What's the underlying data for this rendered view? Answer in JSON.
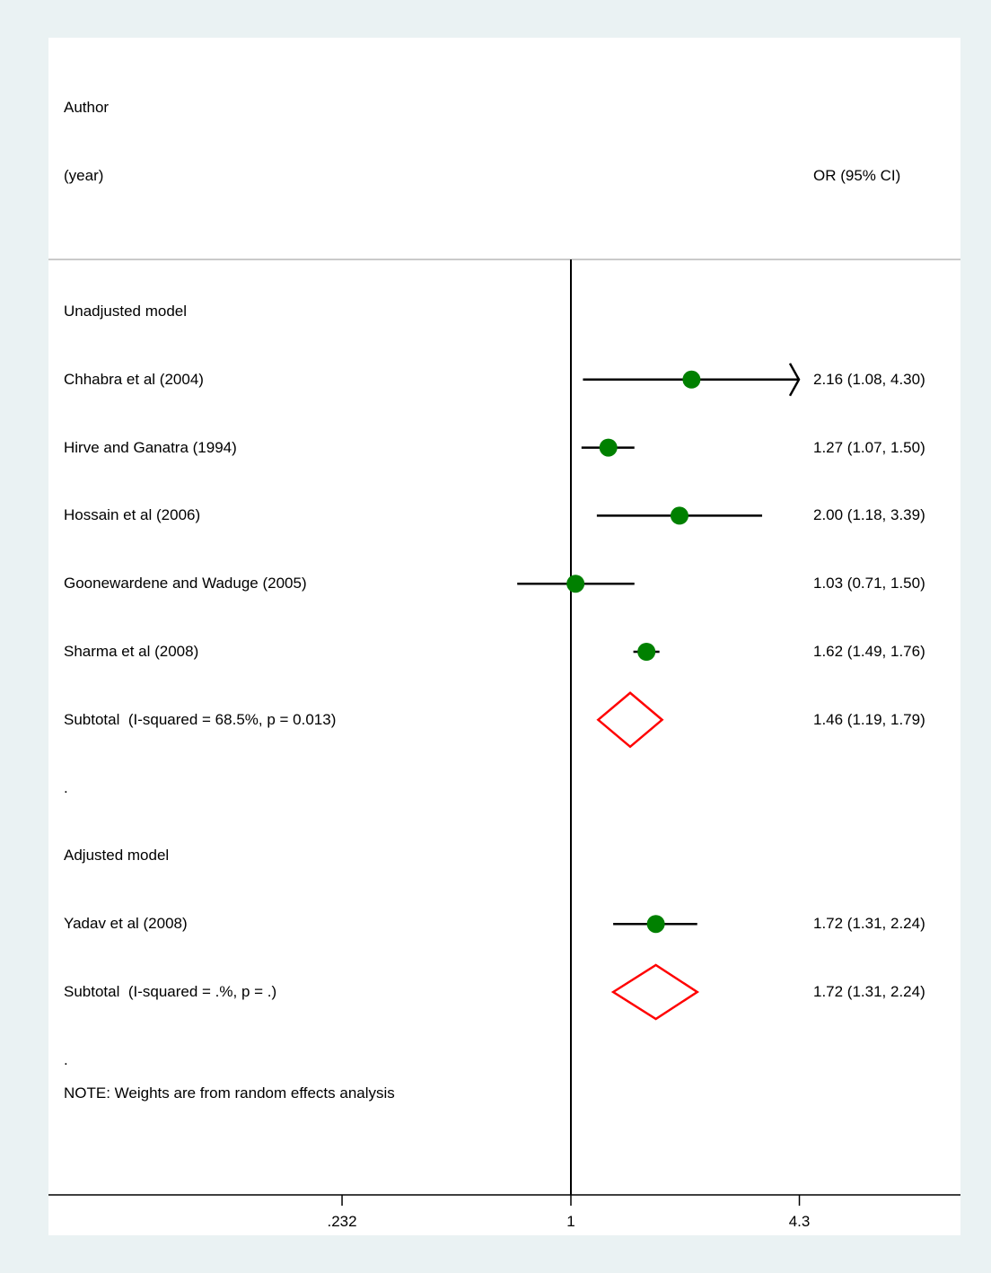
{
  "header": {
    "author_label": "Author",
    "year_label": "(year)",
    "or_label": "OR (95% CI)"
  },
  "colors": {
    "point": "#008000",
    "diamond": "#ff0000",
    "line": "#000000",
    "background": "#eaf2f3",
    "panel": "#ffffff"
  },
  "rows": [
    {
      "kind": "group",
      "label": "Unadjusted model"
    },
    {
      "kind": "study",
      "label": "Chhabra et al (2004)",
      "or": 2.16,
      "lo": 1.08,
      "hi": 4.3,
      "ci_text": "2.16 (1.08, 4.30)",
      "arrow_right": true
    },
    {
      "kind": "study",
      "label": "Hirve and Ganatra (1994)",
      "or": 1.27,
      "lo": 1.07,
      "hi": 1.5,
      "ci_text": "1.27 (1.07, 1.50)"
    },
    {
      "kind": "study",
      "label": "Hossain et al (2006)",
      "or": 2.0,
      "lo": 1.18,
      "hi": 3.39,
      "ci_text": "2.00 (1.18, 3.39)"
    },
    {
      "kind": "study",
      "label": "Goonewardene and Waduge (2005)",
      "or": 1.03,
      "lo": 0.71,
      "hi": 1.5,
      "ci_text": "1.03 (0.71, 1.50)"
    },
    {
      "kind": "study",
      "label": "Sharma et al (2008)",
      "or": 1.62,
      "lo": 1.49,
      "hi": 1.76,
      "ci_text": "1.62 (1.49, 1.76)"
    },
    {
      "kind": "subtotal",
      "label": "Subtotal  (I-squared = 68.5%, p = 0.013)",
      "or": 1.46,
      "lo": 1.19,
      "hi": 1.79,
      "ci_text": "1.46 (1.19, 1.79)"
    },
    {
      "kind": "spacer",
      "label": "."
    },
    {
      "kind": "group",
      "label": "Adjusted model"
    },
    {
      "kind": "study",
      "label": "Yadav et al (2008)",
      "or": 1.72,
      "lo": 1.31,
      "hi": 2.24,
      "ci_text": "1.72 (1.31, 2.24)"
    },
    {
      "kind": "subtotal",
      "label": "Subtotal  (I-squared = .%, p = .)",
      "or": 1.72,
      "lo": 1.31,
      "hi": 2.24,
      "ci_text": "1.72 (1.31, 2.24)"
    },
    {
      "kind": "spacer",
      "label": "."
    }
  ],
  "note": "NOTE: Weights are from random effects analysis",
  "chart_data": {
    "type": "scatter",
    "subtype": "forest-plot",
    "x_scale": "log",
    "xlim": [
      0.16,
      6.05
    ],
    "x_ticks": [
      {
        "value": 0.232,
        "label": ".232"
      },
      {
        "value": 1,
        "label": "1"
      },
      {
        "value": 4.3,
        "label": "4.3"
      }
    ],
    "reference_line": 1,
    "series": [
      {
        "name": "",
        "studies": [
          "Chhabra et al (2004)",
          "Hirve and Ganatra (1994)",
          "Hossain et al (2006)",
          "Goonewardene and Waduge (2005)",
          "Sharma et al (2008)",
          "Yadav et al (2008)"
        ],
        "or": [
          2.16,
          1.27,
          2.0,
          1.03,
          1.62,
          1.72
        ],
        "lower": [
          1.08,
          1.07,
          1.18,
          0.71,
          1.49,
          1.31
        ],
        "upper": [
          4.3,
          1.5,
          3.39,
          1.5,
          1.76,
          2.24
        ]
      }
    ],
    "subtotals": [
      {
        "label": "Unadjusted model",
        "or": 1.46,
        "lower": 1.19,
        "upper": 1.79
      },
      {
        "label": "Adjusted model",
        "or": 1.72,
        "lower": 1.31,
        "upper": 2.24
      }
    ]
  }
}
